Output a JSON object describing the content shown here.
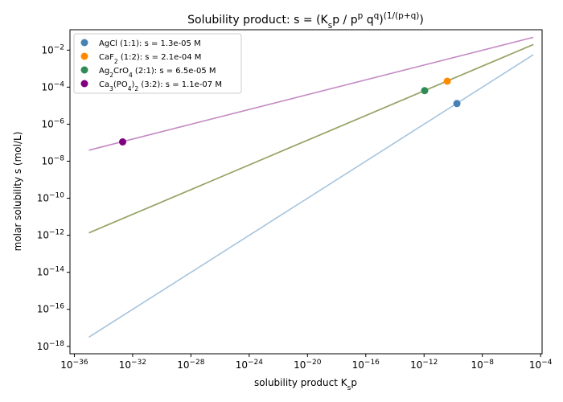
{
  "chart_data": {
    "type": "scatter",
    "title": "Solubility product: s = (K_sp / p^p q^q)^(1/(p+q))",
    "xlabel": "solubility product K_sp",
    "ylabel": "molar solubility s (mol/L)",
    "xscale": "log",
    "yscale": "log",
    "xlim_exponent": [
      -36.3,
      -3.9
    ],
    "ylim_exponent": [
      -18.4,
      -0.9
    ],
    "x_tick_exponents": [
      -36,
      -32,
      -28,
      -24,
      -20,
      -16,
      -12,
      -8,
      -4
    ],
    "y_tick_exponents": [
      -18,
      -16,
      -14,
      -12,
      -10,
      -8,
      -6,
      -4,
      -2
    ],
    "grid": false,
    "legend_position": "top-left",
    "series": [
      {
        "name": "AgCl (1:1): s = 1.3e-05 M",
        "p": 1,
        "q": 1,
        "line_color": "#a6c4dd",
        "point_color": "#4682b4",
        "line_x_exponent_range": [
          -35,
          -4.5
        ],
        "point": {
          "ksp": 1.8e-10,
          "s": 1.3e-05
        }
      },
      {
        "name": "CaF2 (1:2): s = 2.1e-04 M",
        "p": 1,
        "q": 2,
        "line_color": "#97a567",
        "point_color": "#ff8c00",
        "line_x_exponent_range": [
          -35,
          -4.5
        ],
        "point": {
          "ksp": 3.9e-11,
          "s": 0.00021
        }
      },
      {
        "name": "Ag2CrO4 (2:1): s = 6.5e-05 M",
        "p": 2,
        "q": 1,
        "line_color": "#97a567",
        "point_color": "#2e8b57",
        "line_x_exponent_range": [
          -35,
          -4.5
        ],
        "point": {
          "ksp": 1.1e-12,
          "s": 6.5e-05
        }
      },
      {
        "name": "Ca3(PO4)2 (3:2): s = 1.1e-07 M",
        "p": 3,
        "q": 2,
        "line_color": "#c38ac3",
        "point_color": "#800080",
        "line_x_exponent_range": [
          -35,
          -4.5
        ],
        "point": {
          "ksp": 2.07e-33,
          "s": 1.1e-07
        }
      }
    ]
  }
}
